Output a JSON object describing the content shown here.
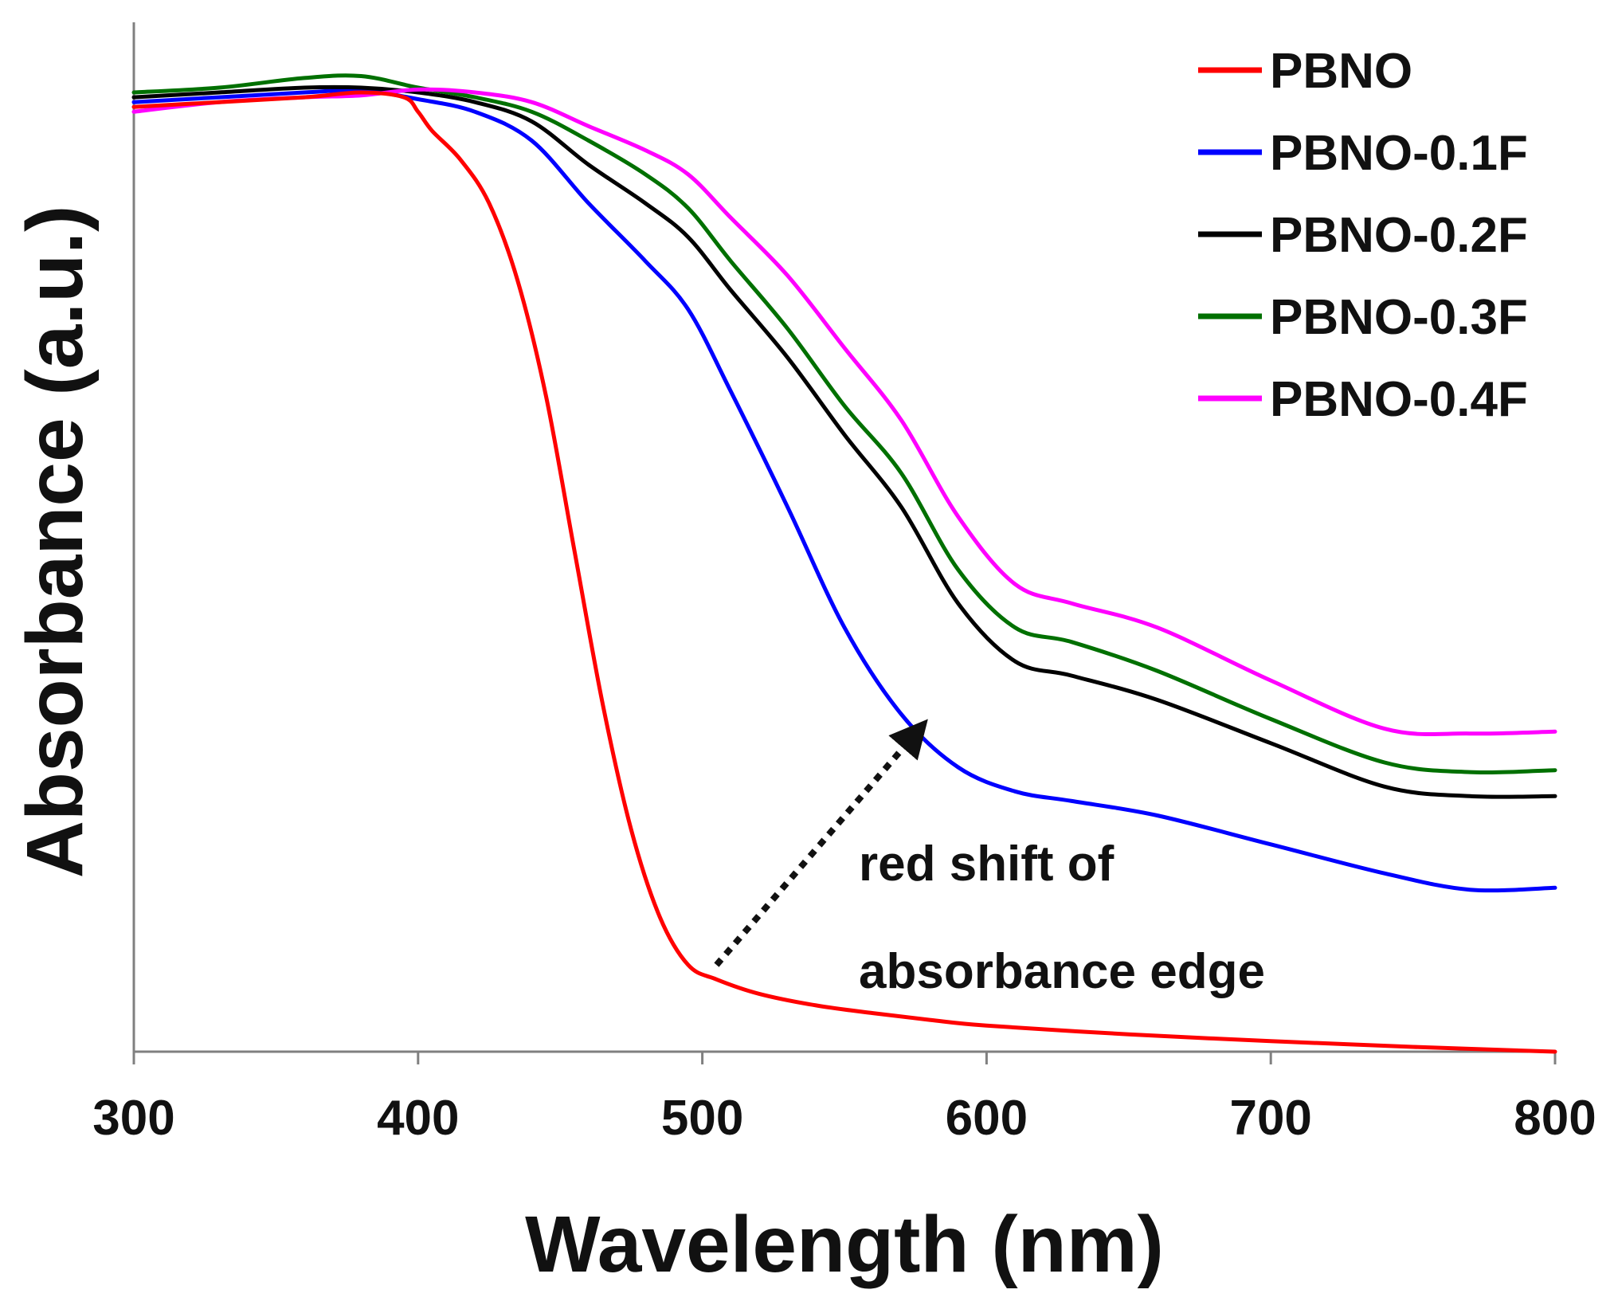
{
  "chart_data": {
    "type": "line",
    "title": "",
    "xlabel": "Wavelength (nm)",
    "ylabel": "Absorbance (a.u.)",
    "xlim": [
      300,
      800
    ],
    "ylim": [
      0,
      1
    ],
    "xticks": [
      300,
      400,
      500,
      600,
      700,
      800
    ],
    "xtick_labels": [
      "300",
      "400",
      "500",
      "600",
      "700",
      "800"
    ],
    "yticks_shown": false,
    "grid": false,
    "legend_position": "top-right",
    "series": [
      {
        "name": "PBNO",
        "color": "#ff0000",
        "x": [
          300,
          330,
          360,
          380,
          395,
          400,
          405,
          415,
          425,
          435,
          445,
          455,
          465,
          475,
          485,
          495,
          505,
          520,
          540,
          560,
          580,
          600,
          650,
          700,
          750,
          800
        ],
        "y": [
          0.98,
          0.985,
          0.99,
          0.995,
          0.99,
          0.975,
          0.955,
          0.925,
          0.88,
          0.8,
          0.68,
          0.52,
          0.36,
          0.23,
          0.14,
          0.09,
          0.075,
          0.06,
          0.048,
          0.04,
          0.033,
          0.027,
          0.018,
          0.011,
          0.005,
          0.0
        ]
      },
      {
        "name": "PBNO-0.1F",
        "color": "#0000ff",
        "x": [
          300,
          330,
          360,
          380,
          400,
          420,
          440,
          460,
          480,
          495,
          510,
          530,
          550,
          570,
          590,
          610,
          630,
          660,
          700,
          740,
          770,
          800
        ],
        "y": [
          0.985,
          0.99,
          0.995,
          0.997,
          0.988,
          0.975,
          0.945,
          0.88,
          0.82,
          0.77,
          0.685,
          0.565,
          0.44,
          0.35,
          0.295,
          0.27,
          0.26,
          0.245,
          0.215,
          0.185,
          0.168,
          0.17
        ]
      },
      {
        "name": "PBNO-0.2F",
        "color": "#000000",
        "x": [
          300,
          330,
          360,
          380,
          400,
          420,
          440,
          460,
          480,
          495,
          510,
          530,
          550,
          570,
          590,
          610,
          630,
          660,
          700,
          740,
          770,
          800
        ],
        "y": [
          0.99,
          0.995,
          1.0,
          1.0,
          0.995,
          0.985,
          0.965,
          0.92,
          0.88,
          0.845,
          0.79,
          0.72,
          0.64,
          0.565,
          0.465,
          0.405,
          0.39,
          0.365,
          0.32,
          0.275,
          0.265,
          0.265
        ]
      },
      {
        "name": "PBNO-0.3F",
        "color": "#007000",
        "x": [
          300,
          330,
          360,
          380,
          400,
          420,
          440,
          460,
          480,
          495,
          510,
          530,
          550,
          570,
          590,
          610,
          630,
          660,
          700,
          740,
          770,
          800
        ],
        "y": [
          0.995,
          1.0,
          1.01,
          1.012,
          1.0,
          0.99,
          0.975,
          0.945,
          0.91,
          0.875,
          0.82,
          0.75,
          0.67,
          0.6,
          0.5,
          0.44,
          0.425,
          0.395,
          0.345,
          0.3,
          0.29,
          0.292
        ]
      },
      {
        "name": "PBNO-0.4F",
        "color": "#ff00ff",
        "x": [
          300,
          330,
          360,
          380,
          400,
          420,
          440,
          460,
          480,
          495,
          510,
          530,
          550,
          570,
          590,
          610,
          630,
          660,
          700,
          740,
          770,
          800
        ],
        "y": [
          0.975,
          0.985,
          0.99,
          0.992,
          0.998,
          0.995,
          0.985,
          0.96,
          0.935,
          0.91,
          0.865,
          0.805,
          0.73,
          0.655,
          0.555,
          0.485,
          0.465,
          0.44,
          0.385,
          0.335,
          0.33,
          0.332
        ]
      }
    ],
    "annotations": [
      {
        "text_lines": [
          "red shift of",
          "absorbance edge"
        ],
        "arrow": {
          "style": "dotted",
          "from": [
            505,
            0.09
          ],
          "to": [
            575,
            0.33
          ]
        }
      }
    ]
  }
}
